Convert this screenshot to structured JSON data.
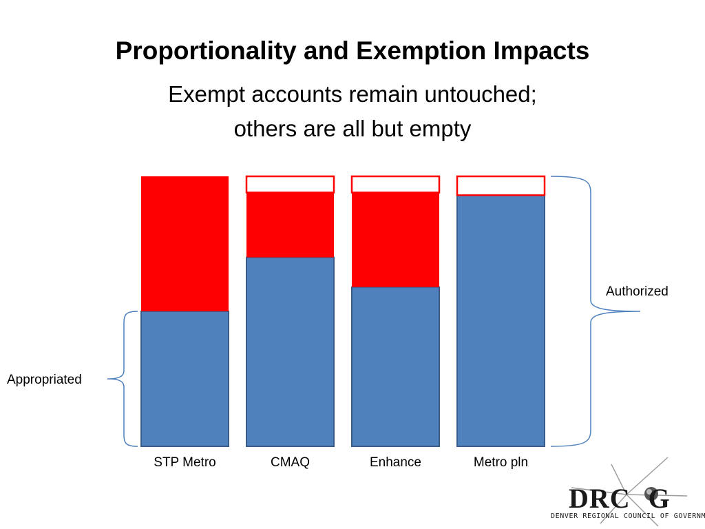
{
  "title": "Proportionality and Exemption Impacts",
  "subtitle_lines": [
    "Exempt accounts remain untouched;",
    "others are all but empty"
  ],
  "chart_data": {
    "type": "bar",
    "stacked": true,
    "categories": [
      "STP Metro",
      "CMAQ",
      "Enhance",
      "Metro pln"
    ],
    "series": [
      {
        "key": "appropriated",
        "values": [
          0.5,
          0.7,
          0.59,
          0.93
        ],
        "color": "#4f81bd"
      },
      {
        "key": "remaining_authorized",
        "values": [
          0.5,
          0.24,
          0.35,
          0.0
        ],
        "color": "#ff0000"
      },
      {
        "key": "unused",
        "values": [
          0.0,
          0.06,
          0.06,
          0.07
        ],
        "color": "#ffffff"
      }
    ],
    "ylim": [
      0,
      1
    ],
    "annotations": {
      "appropriated": "Appropriated",
      "authorized": "Authorized"
    }
  },
  "logo": {
    "name": "DRCOG",
    "prefix": "DRC",
    "suffix": "G",
    "tagline": "DENVER REGIONAL COUNCIL OF GOVERNMENTS"
  },
  "colors": {
    "blue": "#4f81bd",
    "red": "#ff0000",
    "bar_border": "#385d8a",
    "brace": "#4f81bd"
  }
}
